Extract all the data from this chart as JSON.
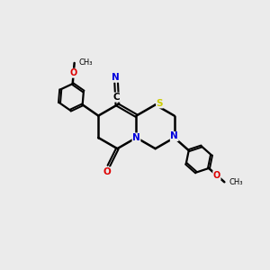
{
  "background_color": "#ebebeb",
  "bond_color": "#000000",
  "atom_colors": {
    "N": "#0000dd",
    "O": "#dd0000",
    "S": "#cccc00",
    "C": "#000000"
  },
  "BL": 0.82,
  "figsize": [
    3.0,
    3.0
  ],
  "dpi": 100
}
